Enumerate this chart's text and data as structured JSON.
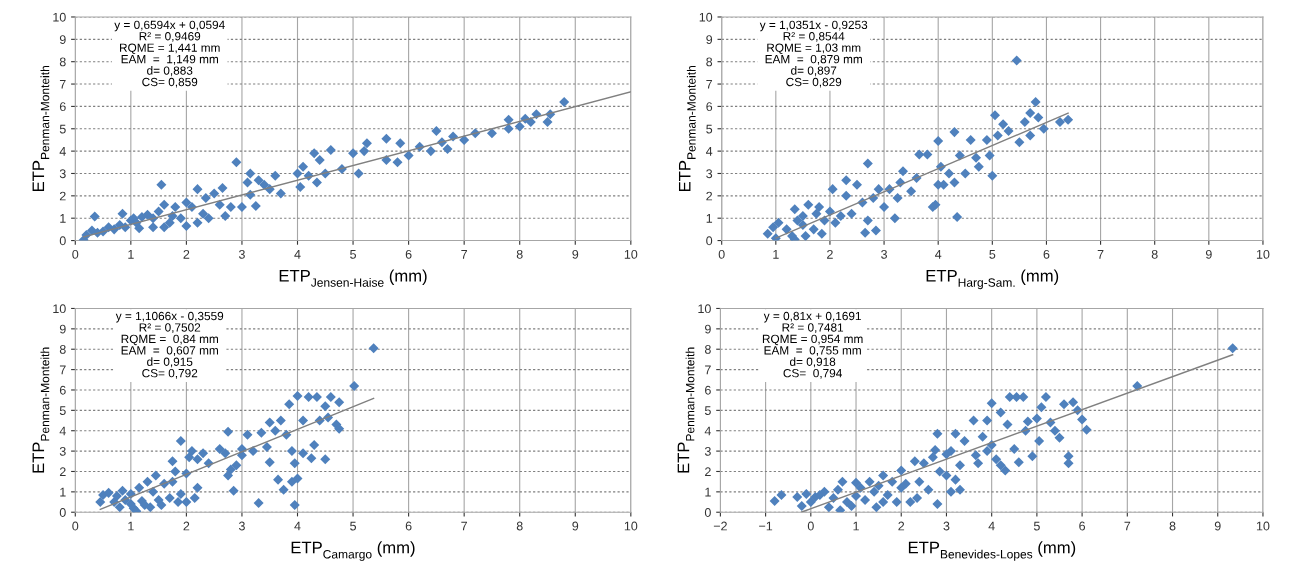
{
  "chart_data": [
    {
      "type": "scatter",
      "xlabel": "ETP$_{Jensen-Haise}$ (mm)",
      "ylabel": "ETP$_{Penman-Monteith}$",
      "xlim": [
        0,
        10
      ],
      "ylim": [
        0,
        10
      ],
      "xticks": [
        0,
        1,
        2,
        3,
        4,
        5,
        6,
        7,
        8,
        9,
        10
      ],
      "yticks": [
        0,
        1,
        2,
        3,
        4,
        5,
        6,
        7,
        8,
        9,
        10
      ],
      "grid": true,
      "annotations": [
        "y = 0,6594x + 0,0594",
        "R² = 0,9469",
        "RQME = 1,441 mm",
        "EAM  =  1,149 mm",
        "d= 0,883",
        "CS= 0,859"
      ],
      "series": [
        {
          "marker": "diamond",
          "color": "#4f81bd",
          "x": [
            0.15,
            0.2,
            0.3,
            0.35,
            0.4,
            0.5,
            0.6,
            0.7,
            0.8,
            0.85,
            0.9,
            1.0,
            1.05,
            1.1,
            1.2,
            1.15,
            1.3,
            1.4,
            1.4,
            1.5,
            1.55,
            1.6,
            1.6,
            1.7,
            1.75,
            1.8,
            1.9,
            2.0,
            2.0,
            2.1,
            2.2,
            2.2,
            2.3,
            2.35,
            2.4,
            2.5,
            2.6,
            2.65,
            2.7,
            2.8,
            2.9,
            3.0,
            3.1,
            3.15,
            3.15,
            3.25,
            3.3,
            3.4,
            3.5,
            3.6,
            3.7,
            4.0,
            4.05,
            4.1,
            4.2,
            4.3,
            4.35,
            4.4,
            4.5,
            4.6,
            4.8,
            5.0,
            5.1,
            5.2,
            5.25,
            5.6,
            5.6,
            5.8,
            5.85,
            6.0,
            6.2,
            6.4,
            6.5,
            6.6,
            6.7,
            6.8,
            7.0,
            7.2,
            7.5,
            7.8,
            7.8,
            8.0,
            8.1,
            8.2,
            8.3,
            8.5,
            8.55,
            8.8
          ],
          "values": [
            0.02,
            0.25,
            0.45,
            1.08,
            0.35,
            0.4,
            0.6,
            0.5,
            0.7,
            1.2,
            0.6,
            0.9,
            1.0,
            0.8,
            1.05,
            0.55,
            1.15,
            0.6,
            1.0,
            1.3,
            2.5,
            1.6,
            0.6,
            0.8,
            1.1,
            1.5,
            1.0,
            0.65,
            1.7,
            1.5,
            0.8,
            2.3,
            1.2,
            1.9,
            1.0,
            2.1,
            1.6,
            2.35,
            1.1,
            1.5,
            3.5,
            1.5,
            2.6,
            3.0,
            2.05,
            1.55,
            2.7,
            2.5,
            2.3,
            2.9,
            2.1,
            3.0,
            2.4,
            3.3,
            2.9,
            3.9,
            2.6,
            3.6,
            3.0,
            4.05,
            3.2,
            3.9,
            3.0,
            4.0,
            4.35,
            4.55,
            3.6,
            3.5,
            4.35,
            3.8,
            4.2,
            4.0,
            4.9,
            4.4,
            4.1,
            4.65,
            4.5,
            4.8,
            4.8,
            5.4,
            5.0,
            5.1,
            5.45,
            5.3,
            5.65,
            5.3,
            5.65,
            6.2
          ]
        },
        {
          "type": "line",
          "color": "#808080",
          "x": [
            0.15,
            10
          ],
          "values": [
            0.16,
            6.65
          ]
        }
      ]
    },
    {
      "type": "scatter",
      "xlabel": "ETP$_{Harg-Sam.}$ (mm)",
      "ylabel": "ETP$_{Penman-Monteith}$",
      "xlim": [
        0,
        10
      ],
      "ylim": [
        0,
        10
      ],
      "xticks": [
        0,
        1,
        2,
        3,
        4,
        5,
        6,
        7,
        8,
        9,
        10
      ],
      "yticks": [
        0,
        1,
        2,
        3,
        4,
        5,
        6,
        7,
        8,
        9,
        10
      ],
      "grid": true,
      "annotations": [
        "y = 1,0351x - 0,9253",
        "R² = 0,8544",
        "RQME = 1,03 mm",
        "EAM  =  0,879 mm",
        "d= 0,897",
        "CS= 0,829"
      ],
      "series": [
        {
          "marker": "diamond",
          "color": "#4f81bd",
          "x": [
            0.85,
            0.95,
            1.0,
            1.05,
            1.2,
            1.3,
            1.35,
            1.35,
            1.4,
            1.5,
            1.5,
            1.55,
            1.6,
            1.7,
            1.75,
            1.8,
            1.85,
            1.9,
            2.0,
            2.05,
            2.1,
            2.2,
            2.3,
            2.3,
            2.4,
            2.5,
            2.6,
            2.65,
            2.7,
            2.7,
            2.8,
            2.85,
            2.9,
            3.0,
            3.1,
            3.2,
            3.25,
            3.3,
            3.35,
            3.5,
            3.6,
            3.65,
            3.8,
            3.9,
            3.95,
            4.0,
            4.0,
            4.05,
            4.1,
            4.2,
            4.3,
            4.3,
            4.35,
            4.4,
            4.5,
            4.6,
            4.7,
            4.75,
            4.9,
            4.95,
            5.0,
            5.05,
            5.1,
            5.2,
            5.3,
            5.45,
            5.5,
            5.6,
            5.7,
            5.7,
            5.8,
            5.85,
            5.95,
            6.25,
            6.4
          ],
          "values": [
            0.3,
            0.6,
            0.1,
            0.8,
            0.5,
            0.2,
            0.05,
            1.4,
            0.9,
            0.7,
            1.1,
            0.2,
            1.6,
            0.5,
            1.2,
            1.5,
            0.3,
            0.9,
            1.3,
            2.3,
            0.8,
            1.1,
            2.7,
            2.0,
            1.2,
            2.5,
            1.7,
            0.35,
            3.45,
            0.9,
            1.9,
            0.45,
            2.3,
            1.5,
            2.3,
            1.0,
            1.9,
            2.6,
            3.1,
            2.2,
            2.8,
            3.85,
            3.85,
            1.5,
            1.6,
            2.5,
            4.45,
            3.3,
            2.5,
            3.0,
            2.6,
            4.85,
            1.05,
            3.8,
            3.0,
            4.5,
            3.7,
            3.3,
            4.5,
            3.8,
            2.9,
            5.6,
            4.7,
            5.2,
            4.9,
            8.05,
            4.4,
            5.3,
            4.7,
            5.7,
            6.2,
            5.5,
            5.0,
            5.3,
            5.4
          ]
        },
        {
          "type": "line",
          "color": "#808080",
          "x": [
            1.0,
            6.4
          ],
          "values": [
            0.11,
            5.7
          ]
        }
      ]
    },
    {
      "type": "scatter",
      "xlabel": "ETP$_{Camargo}$ (mm)",
      "ylabel": "ETP$_{Penman-Monteith}$",
      "xlim": [
        0,
        10
      ],
      "ylim": [
        0,
        10
      ],
      "xticks": [
        0,
        1,
        2,
        3,
        4,
        5,
        6,
        7,
        8,
        9,
        10
      ],
      "yticks": [
        0,
        1,
        2,
        3,
        4,
        5,
        6,
        7,
        8,
        9,
        10
      ],
      "grid": true,
      "annotations": [
        "y = 1,1066x - 0,3559",
        "R² = 0,7502",
        "RQME =  0,84 mm",
        "EAM  =  0,607 mm",
        "d= 0,915",
        "CS= 0,792"
      ],
      "series": [
        {
          "marker": "diamond",
          "color": "#4f81bd",
          "x": [
            0.45,
            0.5,
            0.6,
            0.7,
            0.75,
            0.8,
            0.85,
            0.9,
            1.0,
            1.0,
            1.05,
            1.1,
            1.15,
            1.2,
            1.25,
            1.3,
            1.35,
            1.4,
            1.45,
            1.5,
            1.55,
            1.6,
            1.7,
            1.75,
            1.75,
            1.8,
            1.85,
            1.9,
            1.9,
            2.0,
            2.0,
            2.05,
            2.1,
            2.15,
            2.2,
            2.2,
            2.3,
            2.4,
            2.6,
            2.7,
            2.75,
            2.75,
            2.8,
            2.85,
            2.9,
            3.0,
            3.0,
            3.1,
            3.2,
            3.3,
            3.35,
            3.45,
            3.5,
            3.5,
            3.6,
            3.65,
            3.7,
            3.75,
            3.8,
            3.85,
            3.9,
            3.9,
            3.95,
            3.95,
            4.0,
            4.0,
            4.1,
            4.1,
            4.2,
            4.25,
            4.3,
            4.35,
            4.4,
            4.5,
            4.5,
            4.55,
            4.6,
            4.7,
            4.75,
            4.75,
            5.02,
            5.37
          ],
          "values": [
            0.5,
            0.85,
            0.95,
            0.5,
            0.8,
            0.25,
            1.05,
            0.6,
            0.4,
            0.9,
            0.2,
            0.05,
            1.2,
            0.55,
            0.35,
            1.5,
            0.25,
            1.0,
            1.8,
            0.6,
            0.35,
            1.4,
            0.7,
            1.5,
            2.5,
            2.0,
            0.5,
            3.5,
            0.9,
            1.9,
            0.5,
            2.7,
            3.0,
            0.7,
            2.6,
            1.2,
            2.9,
            2.4,
            3.1,
            2.9,
            3.95,
            1.8,
            2.1,
            1.05,
            2.3,
            3.1,
            2.8,
            3.8,
            3.0,
            0.45,
            3.9,
            3.2,
            4.4,
            2.45,
            4.0,
            1.6,
            4.5,
            1.1,
            3.8,
            5.3,
            3.0,
            1.5,
            2.4,
            0.35,
            5.7,
            1.65,
            2.9,
            4.5,
            5.65,
            2.65,
            3.3,
            5.65,
            4.5,
            5.2,
            2.6,
            4.65,
            5.65,
            4.3,
            4.1,
            5.4,
            6.2,
            8.05
          ]
        },
        {
          "type": "line",
          "color": "#808080",
          "x": [
            0.45,
            5.37
          ],
          "values": [
            0.14,
            5.59
          ]
        }
      ]
    },
    {
      "type": "scatter",
      "xlabel": "ETP$_{Benevides-Lopes}$ (mm)",
      "ylabel": "ETP$_{Penman-Monteith}$",
      "xlim": [
        -2,
        10
      ],
      "ylim": [
        0,
        10
      ],
      "xticks": [
        -2,
        -1,
        0,
        1,
        2,
        3,
        4,
        5,
        6,
        7,
        8,
        9,
        10
      ],
      "yticks": [
        0,
        1,
        2,
        3,
        4,
        5,
        6,
        7,
        8,
        9,
        10
      ],
      "grid": true,
      "annotations": [
        "y = 0,81x + 0,1691",
        "R² = 0,7481",
        "RQME = 0,954 mm",
        "EAM  =  0,755 mm",
        "d= 0,918",
        "CS=  0,794"
      ],
      "series": [
        {
          "marker": "diamond",
          "color": "#4f81bd",
          "x": [
            -0.8,
            -0.65,
            -0.3,
            -0.2,
            -0.1,
            0.0,
            0.1,
            0.2,
            0.3,
            0.4,
            0.5,
            0.6,
            0.65,
            0.7,
            0.8,
            0.9,
            1.0,
            1.0,
            1.1,
            1.2,
            1.3,
            1.4,
            1.45,
            1.5,
            1.6,
            1.6,
            1.7,
            1.8,
            1.9,
            2.0,
            2.0,
            2.1,
            2.2,
            2.3,
            2.35,
            2.4,
            2.5,
            2.6,
            2.7,
            2.75,
            2.8,
            2.8,
            2.85,
            3.0,
            3.0,
            3.1,
            3.1,
            3.2,
            3.2,
            3.3,
            3.3,
            3.4,
            3.6,
            3.65,
            3.7,
            3.8,
            3.9,
            3.9,
            4.0,
            4.0,
            4.1,
            4.2,
            4.2,
            4.3,
            4.35,
            4.4,
            4.5,
            4.55,
            4.6,
            4.7,
            4.75,
            4.8,
            4.9,
            5.0,
            5.05,
            5.1,
            5.2,
            5.3,
            5.4,
            5.5,
            5.6,
            5.7,
            5.7,
            5.8,
            5.9,
            6.0,
            6.1,
            7.22,
            9.33
          ],
          "values": [
            0.55,
            0.85,
            0.75,
            0.3,
            0.9,
            0.5,
            0.75,
            0.85,
            1.0,
            0.25,
            0.7,
            1.1,
            0.1,
            1.5,
            0.5,
            0.3,
            1.45,
            0.8,
            1.2,
            0.6,
            1.5,
            1.0,
            0.25,
            1.3,
            1.8,
            0.5,
            0.85,
            1.5,
            0.5,
            2.05,
            1.2,
            1.4,
            0.5,
            2.5,
            0.7,
            1.5,
            2.4,
            1.1,
            2.7,
            3.05,
            3.85,
            0.4,
            2.0,
            2.85,
            1.8,
            3.0,
            1.0,
            1.6,
            3.85,
            2.3,
            1.1,
            3.5,
            4.5,
            2.8,
            2.4,
            3.7,
            3.0,
            4.5,
            5.35,
            3.3,
            2.6,
            4.9,
            2.3,
            2.05,
            4.3,
            5.65,
            3.1,
            5.65,
            2.45,
            5.65,
            4.0,
            4.45,
            2.75,
            4.6,
            3.5,
            5.15,
            5.65,
            4.4,
            4.0,
            3.65,
            5.3,
            2.75,
            2.4,
            5.4,
            5.0,
            4.55,
            4.05,
            6.2,
            8.05
          ]
        },
        {
          "type": "line",
          "color": "#808080",
          "x": [
            -0.2,
            9.33
          ],
          "values": [
            0.01,
            7.73
          ]
        }
      ]
    }
  ]
}
